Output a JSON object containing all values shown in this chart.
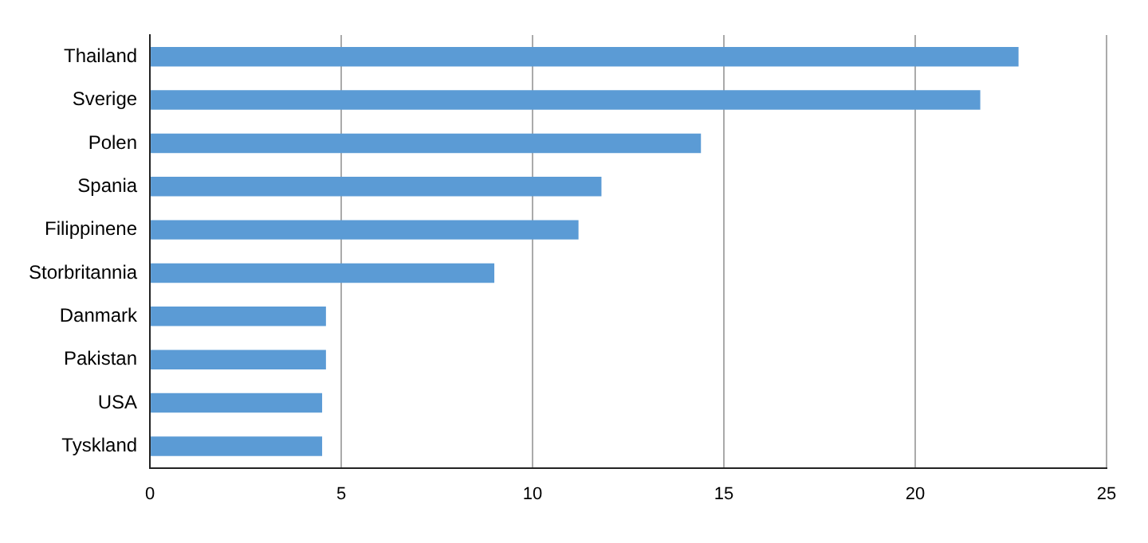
{
  "chart_data": {
    "type": "bar",
    "orientation": "horizontal",
    "categories": [
      "Thailand",
      "Sverige",
      "Polen",
      "Spania",
      "Filippinene",
      "Storbritannia",
      "Danmark",
      "Pakistan",
      "USA",
      "Tyskland"
    ],
    "values": [
      22.7,
      21.7,
      14.4,
      11.8,
      11.2,
      9.0,
      4.6,
      4.6,
      4.5,
      4.5
    ],
    "color": "#5b9bd5",
    "xlim": [
      0,
      25
    ],
    "xticks": [
      0,
      5,
      10,
      15,
      20,
      25
    ],
    "grid": "x"
  }
}
